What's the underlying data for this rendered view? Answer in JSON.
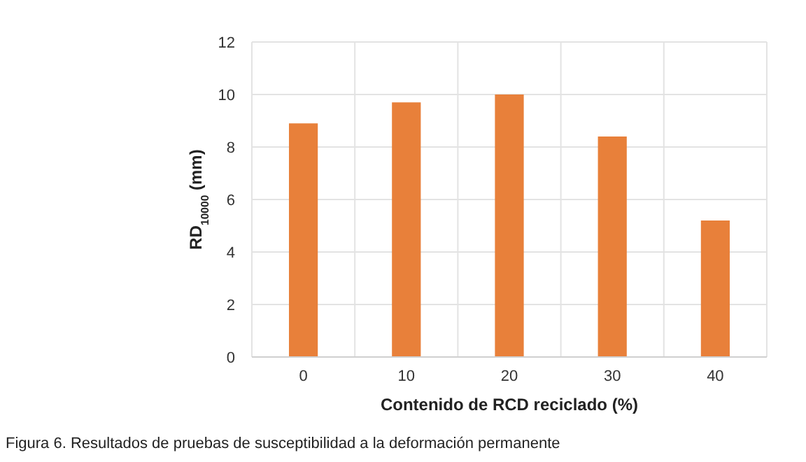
{
  "chart_data": {
    "type": "bar",
    "categories": [
      "0",
      "10",
      "20",
      "30",
      "40"
    ],
    "values": [
      8.9,
      9.7,
      10.0,
      8.4,
      5.2
    ],
    "color": "#e8803a",
    "ylim": [
      0,
      12
    ],
    "yticks": [
      0,
      2,
      4,
      6,
      8,
      10,
      12
    ],
    "grid": true,
    "xlabel": "Contenido de RCD reciclado (%)",
    "ylabel": "RD$_{10000}$ (mm)",
    "annotations": [
      "Figura 6. Resultados de pruebas de susceptibilidad a la deformación permanente"
    ]
  }
}
